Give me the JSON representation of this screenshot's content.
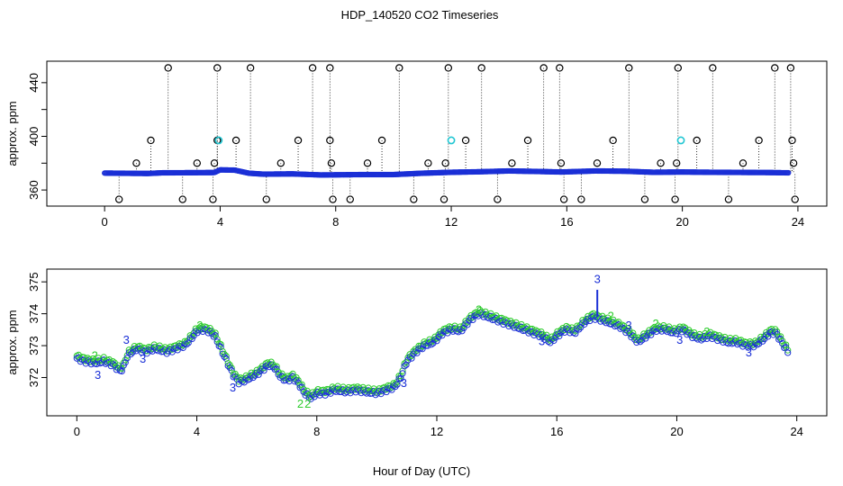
{
  "figure": {
    "title": "HDP_140520  CO2 Timeseries",
    "xlabel": "Hour of Day (UTC)"
  },
  "chart_data": [
    {
      "type": "scatter",
      "ylabel": "approx. ppm",
      "xlim": [
        -2,
        25
      ],
      "ylim": [
        348,
        456
      ],
      "xticks": [
        0,
        4,
        8,
        12,
        16,
        20,
        24
      ],
      "yticks": [
        360,
        400,
        440
      ],
      "yminor": [
        380,
        420
      ],
      "grid": false,
      "baseline": [
        [
          0.0,
          372.6
        ],
        [
          1.0,
          372.4
        ],
        [
          1.5,
          372.3
        ],
        [
          2.0,
          372.8
        ],
        [
          3.0,
          372.9
        ],
        [
          3.8,
          373.0
        ],
        [
          4.0,
          375.0
        ],
        [
          4.5,
          374.8
        ],
        [
          5.0,
          372.5
        ],
        [
          5.5,
          371.8
        ],
        [
          6.5,
          372.0
        ],
        [
          7.5,
          371.2
        ],
        [
          8.0,
          371.3
        ],
        [
          9.0,
          371.5
        ],
        [
          10.0,
          371.5
        ],
        [
          11.0,
          372.5
        ],
        [
          12.0,
          373.2
        ],
        [
          13.0,
          373.6
        ],
        [
          14.0,
          374.2
        ],
        [
          15.0,
          373.8
        ],
        [
          15.8,
          373.4
        ],
        [
          17.0,
          374.2
        ],
        [
          18.0,
          374.0
        ],
        [
          19.0,
          373.2
        ],
        [
          20.0,
          373.4
        ],
        [
          21.0,
          373.2
        ],
        [
          22.0,
          373.1
        ],
        [
          23.0,
          373.0
        ],
        [
          23.7,
          372.8
        ]
      ],
      "outliers": [
        {
          "x": 0.5,
          "y": 353
        },
        {
          "x": 1.1,
          "y": 380
        },
        {
          "x": 1.6,
          "y": 397
        },
        {
          "x": 2.2,
          "y": 451
        },
        {
          "x": 2.7,
          "y": 353
        },
        {
          "x": 3.2,
          "y": 380
        },
        {
          "x": 3.75,
          "y": 353
        },
        {
          "x": 3.8,
          "y": 380
        },
        {
          "x": 3.9,
          "y": 397
        },
        {
          "x": 3.9,
          "y": 451
        },
        {
          "x": 4.55,
          "y": 397
        },
        {
          "x": 5.05,
          "y": 451
        },
        {
          "x": 5.6,
          "y": 353
        },
        {
          "x": 6.1,
          "y": 380
        },
        {
          "x": 6.7,
          "y": 397
        },
        {
          "x": 7.2,
          "y": 451
        },
        {
          "x": 7.8,
          "y": 451
        },
        {
          "x": 7.8,
          "y": 397
        },
        {
          "x": 7.85,
          "y": 380
        },
        {
          "x": 7.9,
          "y": 353
        },
        {
          "x": 8.5,
          "y": 353
        },
        {
          "x": 9.1,
          "y": 380
        },
        {
          "x": 9.6,
          "y": 397
        },
        {
          "x": 10.2,
          "y": 451
        },
        {
          "x": 10.7,
          "y": 353
        },
        {
          "x": 11.2,
          "y": 380
        },
        {
          "x": 11.75,
          "y": 353
        },
        {
          "x": 11.8,
          "y": 380
        },
        {
          "x": 11.9,
          "y": 451
        },
        {
          "x": 12.5,
          "y": 397
        },
        {
          "x": 13.05,
          "y": 451
        },
        {
          "x": 13.6,
          "y": 353
        },
        {
          "x": 14.1,
          "y": 380
        },
        {
          "x": 14.65,
          "y": 397
        },
        {
          "x": 15.2,
          "y": 451
        },
        {
          "x": 15.75,
          "y": 451
        },
        {
          "x": 15.8,
          "y": 380
        },
        {
          "x": 15.9,
          "y": 353
        },
        {
          "x": 16.5,
          "y": 353
        },
        {
          "x": 17.05,
          "y": 380
        },
        {
          "x": 17.6,
          "y": 397
        },
        {
          "x": 18.15,
          "y": 451
        },
        {
          "x": 18.7,
          "y": 353
        },
        {
          "x": 19.25,
          "y": 380
        },
        {
          "x": 19.75,
          "y": 353
        },
        {
          "x": 19.8,
          "y": 380
        },
        {
          "x": 19.85,
          "y": 451
        },
        {
          "x": 20.5,
          "y": 397
        },
        {
          "x": 21.05,
          "y": 451
        },
        {
          "x": 21.6,
          "y": 353
        },
        {
          "x": 22.1,
          "y": 380
        },
        {
          "x": 22.65,
          "y": 397
        },
        {
          "x": 23.2,
          "y": 451
        },
        {
          "x": 23.75,
          "y": 451
        },
        {
          "x": 23.8,
          "y": 397
        },
        {
          "x": 23.85,
          "y": 380
        },
        {
          "x": 23.9,
          "y": 353
        }
      ],
      "cyan_points": [
        [
          3.95,
          397
        ],
        [
          12.0,
          397
        ],
        [
          19.95,
          397
        ]
      ],
      "colors": {
        "baseline": "#1a2fd6",
        "outlier": "#000000",
        "cyan": "#22c7d3",
        "drop": "#000000"
      }
    },
    {
      "type": "scatter",
      "ylabel": "approx. ppm",
      "xlim": [
        -1,
        25
      ],
      "ylim": [
        370.8,
        375.4
      ],
      "xticks": [
        0,
        4,
        8,
        12,
        16,
        20,
        24
      ],
      "yticks": [
        372,
        373,
        374,
        375
      ],
      "grid": false,
      "series": [
        {
          "marker": "o",
          "points": [
            [
              0.0,
              372.6
            ],
            [
              0.3,
              372.5
            ],
            [
              0.6,
              372.45
            ],
            [
              0.9,
              372.5
            ],
            [
              1.2,
              372.4
            ],
            [
              1.45,
              372.2
            ],
            [
              1.55,
              372.3
            ],
            [
              1.7,
              372.7
            ],
            [
              2.0,
              372.9
            ],
            [
              2.3,
              372.8
            ],
            [
              2.6,
              372.9
            ],
            [
              3.0,
              372.8
            ],
            [
              3.3,
              372.9
            ],
            [
              3.6,
              373.0
            ],
            [
              3.8,
              373.2
            ],
            [
              4.0,
              373.45
            ],
            [
              4.2,
              373.5
            ],
            [
              4.4,
              373.45
            ],
            [
              4.6,
              373.3
            ],
            [
              4.8,
              372.9
            ],
            [
              5.0,
              372.5
            ],
            [
              5.2,
              372.1
            ],
            [
              5.4,
              371.85
            ],
            [
              5.6,
              371.9
            ],
            [
              5.8,
              372.0
            ],
            [
              6.0,
              372.1
            ],
            [
              6.2,
              372.25
            ],
            [
              6.4,
              372.4
            ],
            [
              6.6,
              372.3
            ],
            [
              6.8,
              372.0
            ],
            [
              7.0,
              371.9
            ],
            [
              7.2,
              372.0
            ],
            [
              7.4,
              371.8
            ],
            [
              7.6,
              371.5
            ],
            [
              7.8,
              371.35
            ],
            [
              8.0,
              371.5
            ],
            [
              8.3,
              371.5
            ],
            [
              8.6,
              371.6
            ],
            [
              9.0,
              371.55
            ],
            [
              9.3,
              371.6
            ],
            [
              9.6,
              371.55
            ],
            [
              10.0,
              371.5
            ],
            [
              10.3,
              371.6
            ],
            [
              10.6,
              371.7
            ],
            [
              10.8,
              372.0
            ],
            [
              11.0,
              372.5
            ],
            [
              11.3,
              372.8
            ],
            [
              11.6,
              373.0
            ],
            [
              11.9,
              373.1
            ],
            [
              12.2,
              373.4
            ],
            [
              12.5,
              373.5
            ],
            [
              12.8,
              373.45
            ],
            [
              13.1,
              373.8
            ],
            [
              13.4,
              374.0
            ],
            [
              13.7,
              373.9
            ],
            [
              14.0,
              373.8
            ],
            [
              14.3,
              373.7
            ],
            [
              14.6,
              373.6
            ],
            [
              14.9,
              373.5
            ],
            [
              15.2,
              373.4
            ],
            [
              15.5,
              373.3
            ],
            [
              15.8,
              373.1
            ],
            [
              16.0,
              373.3
            ],
            [
              16.3,
              373.5
            ],
            [
              16.6,
              373.4
            ],
            [
              16.9,
              373.7
            ],
            [
              17.2,
              373.9
            ],
            [
              17.5,
              373.8
            ],
            [
              17.8,
              373.7
            ],
            [
              18.1,
              373.6
            ],
            [
              18.4,
              373.4
            ],
            [
              18.7,
              373.1
            ],
            [
              19.0,
              373.3
            ],
            [
              19.3,
              373.5
            ],
            [
              19.6,
              373.5
            ],
            [
              19.9,
              373.4
            ],
            [
              20.2,
              373.5
            ],
            [
              20.5,
              373.3
            ],
            [
              20.8,
              373.2
            ],
            [
              21.1,
              373.3
            ],
            [
              21.4,
              373.2
            ],
            [
              21.7,
              373.1
            ],
            [
              22.0,
              373.1
            ],
            [
              22.3,
              373.0
            ],
            [
              22.6,
              373.0
            ],
            [
              22.9,
              373.2
            ],
            [
              23.1,
              373.4
            ],
            [
              23.3,
              373.4
            ],
            [
              23.5,
              373.1
            ],
            [
              23.7,
              372.8
            ]
          ]
        }
      ],
      "spike": {
        "x": 17.35,
        "y": 374.75
      },
      "labels": [
        {
          "text": "3",
          "x": 17.35,
          "y": 375.1,
          "color": "#1a2fd6"
        },
        {
          "text": "3",
          "x": 1.65,
          "y": 373.2,
          "color": "#1a2fd6"
        },
        {
          "text": "2",
          "x": 0.6,
          "y": 372.7,
          "color": "#2ecc2e"
        },
        {
          "text": "2",
          "x": 7.45,
          "y": 371.2,
          "color": "#2ecc2e"
        },
        {
          "text": "2",
          "x": 7.7,
          "y": 371.2,
          "color": "#2ecc2e"
        },
        {
          "text": "3",
          "x": 0.7,
          "y": 372.1,
          "color": "#1a2fd6"
        },
        {
          "text": "3",
          "x": 5.2,
          "y": 371.7,
          "color": "#1a2fd6"
        },
        {
          "text": "2",
          "x": 4.1,
          "y": 373.65,
          "color": "#2ecc2e"
        },
        {
          "text": "2",
          "x": 13.4,
          "y": 374.15,
          "color": "#2ecc2e"
        },
        {
          "text": "3",
          "x": 15.5,
          "y": 373.15,
          "color": "#1a2fd6"
        },
        {
          "text": "2",
          "x": 17.8,
          "y": 373.95,
          "color": "#2ecc2e"
        },
        {
          "text": "3",
          "x": 18.4,
          "y": 373.65,
          "color": "#1a2fd6"
        },
        {
          "text": "2",
          "x": 19.3,
          "y": 373.7,
          "color": "#2ecc2e"
        },
        {
          "text": "3",
          "x": 20.1,
          "y": 373.2,
          "color": "#1a2fd6"
        },
        {
          "text": "3",
          "x": 22.4,
          "y": 372.8,
          "color": "#1a2fd6"
        },
        {
          "text": "2",
          "x": 21.0,
          "y": 373.45,
          "color": "#2ecc2e"
        },
        {
          "text": "3",
          "x": 10.9,
          "y": 371.85,
          "color": "#1a2fd6"
        },
        {
          "text": "3",
          "x": 2.2,
          "y": 372.6,
          "color": "#1a2fd6"
        }
      ],
      "colors": {
        "blue": "#1a2fd6",
        "green": "#2ecc2e"
      }
    }
  ]
}
